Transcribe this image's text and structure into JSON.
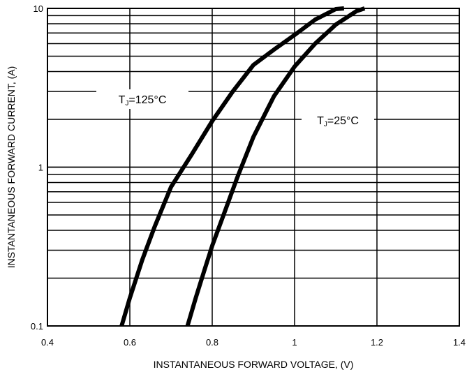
{
  "chart_data": {
    "type": "line",
    "xlabel": "INSTANTANEOUS FORWARD VOLTAGE, (V)",
    "ylabel": "INSTANTANEOUS FORWARD CURRENT, (A)",
    "xlim": [
      0.4,
      1.4
    ],
    "ylim": [
      0.1,
      10
    ],
    "yscale": "log",
    "x_ticks": [
      "0.4",
      "0.6",
      "0.8",
      "1",
      "1.2",
      "1.4"
    ],
    "y_ticks": [
      "0.1",
      "1",
      "10"
    ],
    "grid": true,
    "series": [
      {
        "name": "TJ=125°C",
        "x": [
          0.58,
          0.6,
          0.63,
          0.66,
          0.7,
          0.75,
          0.8,
          0.85,
          0.9,
          0.95,
          1.0,
          1.05,
          1.1,
          1.12
        ],
        "y": [
          0.1,
          0.15,
          0.26,
          0.42,
          0.75,
          1.2,
          1.95,
          3.0,
          4.4,
          5.5,
          6.8,
          8.5,
          9.9,
          10
        ]
      },
      {
        "name": "TJ=25°C",
        "x": [
          0.74,
          0.76,
          0.78,
          0.8,
          0.83,
          0.86,
          0.9,
          0.95,
          1.0,
          1.05,
          1.1,
          1.15,
          1.17
        ],
        "y": [
          0.1,
          0.15,
          0.22,
          0.32,
          0.52,
          0.85,
          1.55,
          2.8,
          4.3,
          6.0,
          7.9,
          9.6,
          10
        ]
      }
    ],
    "annotations": [
      {
        "label": "T",
        "sub": "J",
        "rest": "=125°C",
        "series": 0
      },
      {
        "label": "T",
        "sub": "J",
        "rest": "=25°C",
        "series": 1
      }
    ]
  }
}
